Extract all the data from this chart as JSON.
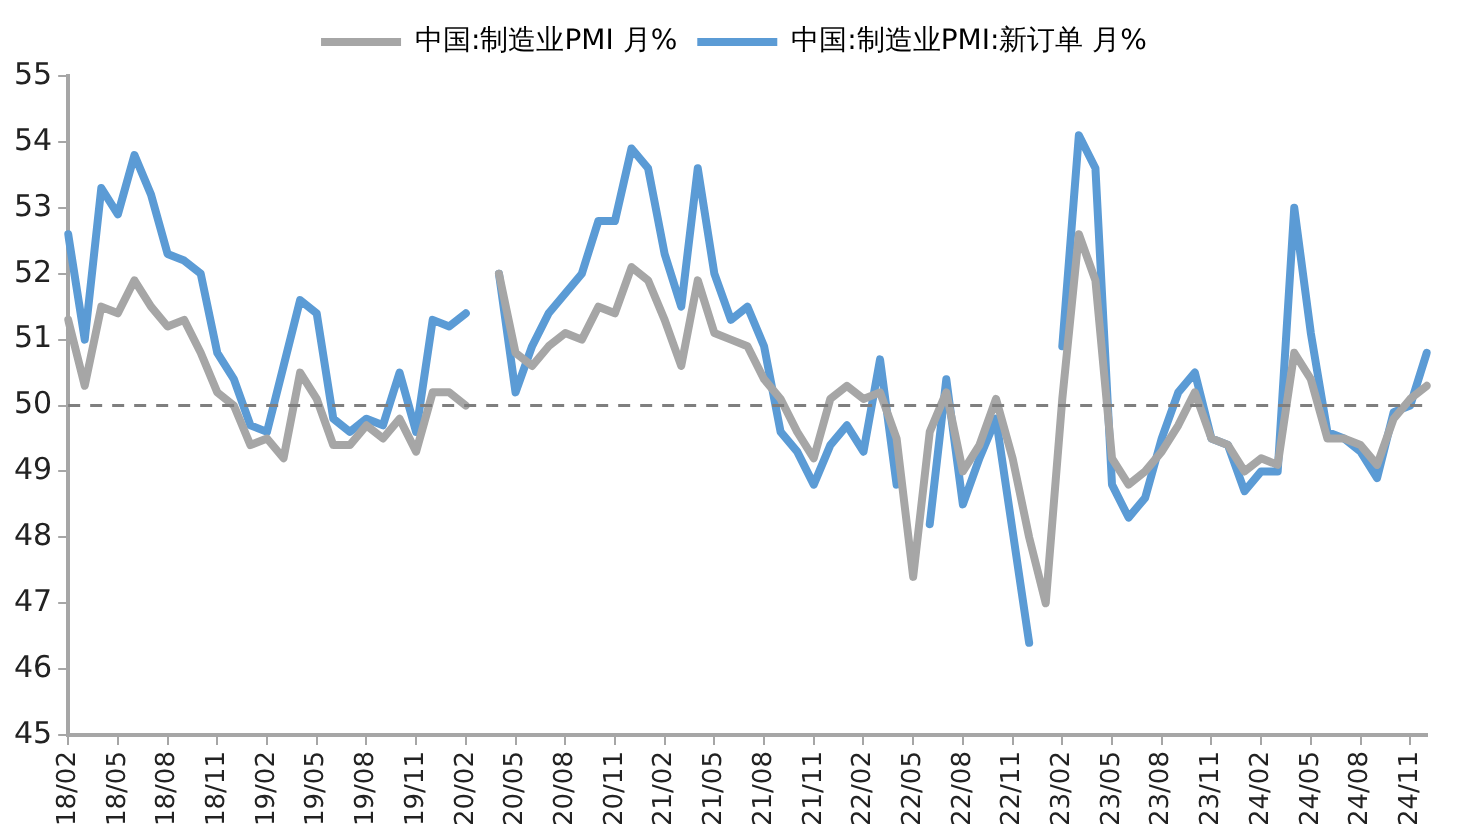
{
  "chart_data": {
    "type": "line",
    "categories": [
      "18/02",
      null,
      null,
      "18/05",
      null,
      null,
      "18/08",
      null,
      null,
      "18/11",
      null,
      null,
      "19/02",
      null,
      null,
      "19/05",
      null,
      null,
      "19/08",
      null,
      null,
      "19/11",
      null,
      null,
      "20/02",
      null,
      null,
      "20/05",
      null,
      null,
      "20/08",
      null,
      null,
      "20/11",
      null,
      null,
      "21/02",
      null,
      null,
      "21/05",
      null,
      null,
      "21/08",
      null,
      null,
      "21/11",
      null,
      null,
      "22/02",
      null,
      null,
      "22/05",
      null,
      null,
      "22/08",
      null,
      null,
      "22/11",
      null,
      null,
      "23/02",
      null,
      null,
      "23/05",
      null,
      null,
      "23/08",
      null,
      null,
      "23/11",
      null,
      null,
      "24/02",
      null,
      null,
      "24/05",
      null,
      null,
      "24/08",
      null,
      null,
      "24/11",
      null
    ],
    "series": [
      {
        "name": "中国:制造业PMI 月%",
        "color": "#a6a6a6",
        "values": [
          51.3,
          50.3,
          51.5,
          51.4,
          51.9,
          51.5,
          51.2,
          51.3,
          50.8,
          50.2,
          50.0,
          49.4,
          49.5,
          49.2,
          50.5,
          50.1,
          49.4,
          49.4,
          49.7,
          49.5,
          49.8,
          49.3,
          50.2,
          50.2,
          50.0,
          null,
          52.0,
          50.8,
          50.6,
          50.9,
          51.1,
          51.0,
          51.5,
          51.4,
          52.1,
          51.9,
          51.3,
          50.6,
          51.9,
          51.1,
          51.0,
          50.9,
          50.4,
          50.1,
          49.6,
          49.2,
          50.1,
          50.3,
          50.1,
          50.2,
          49.5,
          47.4,
          49.6,
          50.2,
          49.0,
          49.4,
          50.1,
          49.2,
          48.0,
          47.0,
          50.1,
          52.6,
          51.9,
          49.2,
          48.8,
          49.0,
          49.3,
          49.7,
          50.2,
          49.5,
          49.4,
          49.0,
          49.2,
          49.1,
          50.8,
          50.4,
          49.5,
          49.5,
          49.4,
          49.1,
          49.8,
          50.1,
          50.3
        ]
      },
      {
        "name": "中国:制造业PMI:新订单 月%",
        "color": "#5b9bd5",
        "values": [
          52.6,
          51.0,
          53.3,
          52.9,
          53.8,
          53.2,
          52.3,
          52.2,
          52.0,
          50.8,
          50.4,
          49.7,
          49.6,
          50.6,
          51.6,
          51.4,
          49.8,
          49.6,
          49.8,
          49.7,
          50.5,
          49.6,
          51.3,
          51.2,
          51.4,
          null,
          52.0,
          50.2,
          50.9,
          51.4,
          51.7,
          52.0,
          52.8,
          52.8,
          53.9,
          53.6,
          52.3,
          51.5,
          53.6,
          52.0,
          51.3,
          51.5,
          50.9,
          49.6,
          49.3,
          48.8,
          49.4,
          49.7,
          49.3,
          50.7,
          48.8,
          null,
          48.2,
          50.4,
          48.5,
          49.2,
          49.8,
          48.1,
          46.4,
          null,
          50.9,
          54.1,
          53.6,
          48.8,
          48.3,
          48.6,
          49.5,
          50.2,
          50.5,
          49.5,
          49.4,
          48.7,
          49.0,
          49.0,
          53.0,
          51.1,
          49.6,
          49.5,
          49.3,
          48.9,
          49.9,
          50.0,
          50.8
        ]
      }
    ],
    "ylim": [
      45,
      55
    ],
    "yticks": [
      45,
      46,
      47,
      48,
      49,
      50,
      51,
      52,
      53,
      54,
      55
    ],
    "ref_lines": [
      {
        "axis": "y",
        "value": 50,
        "color": "#7f7f7f",
        "line_style": "dashed"
      }
    ],
    "legend": "top",
    "grid": false,
    "marker": "none",
    "line_style": "solid"
  }
}
